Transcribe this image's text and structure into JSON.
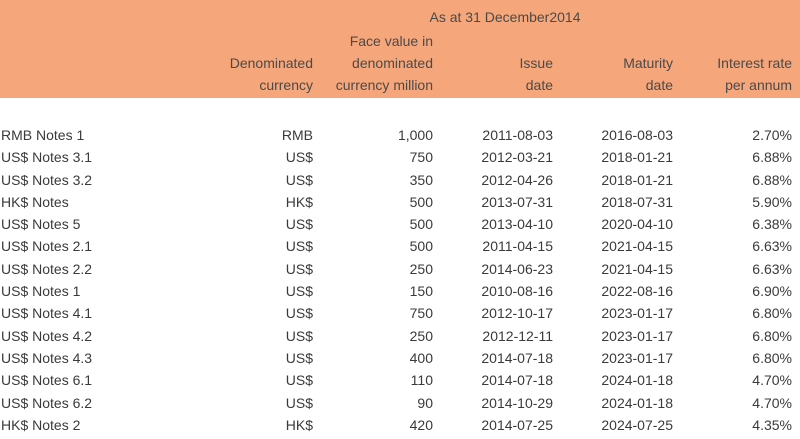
{
  "header": {
    "period": "As at 31 December2014",
    "columns": {
      "currency": [
        "Denominated",
        "currency"
      ],
      "face_value": [
        "Face value in",
        "denominated",
        "currency million"
      ],
      "issue": [
        "Issue",
        "date"
      ],
      "maturity": [
        "Maturity",
        "date"
      ],
      "rate": [
        "Interest rate",
        "per annum"
      ]
    }
  },
  "colors": {
    "header_bg": "#f5a77b",
    "text": "#3a3a3a"
  },
  "rows": [
    {
      "name": "RMB Notes 1",
      "currency": "RMB",
      "face": "1,000",
      "issue": "2011-08-03",
      "maturity": "2016-08-03",
      "rate": "2.70%"
    },
    {
      "name": "US$ Notes 3.1",
      "currency": "US$",
      "face": "750",
      "issue": "2012-03-21",
      "maturity": "2018-01-21",
      "rate": "6.88%"
    },
    {
      "name": "US$ Notes 3.2",
      "currency": "US$",
      "face": "350",
      "issue": "2012-04-26",
      "maturity": "2018-01-21",
      "rate": "6.88%"
    },
    {
      "name": "HK$ Notes",
      "currency": "HK$",
      "face": "500",
      "issue": "2013-07-31",
      "maturity": "2018-07-31",
      "rate": "5.90%"
    },
    {
      "name": "US$ Notes 5",
      "currency": "US$",
      "face": "500",
      "issue": "2013-04-10",
      "maturity": "2020-04-10",
      "rate": "6.38%"
    },
    {
      "name": "US$ Notes 2.1",
      "currency": "US$",
      "face": "500",
      "issue": "2011-04-15",
      "maturity": "2021-04-15",
      "rate": "6.63%"
    },
    {
      "name": "US$ Notes 2.2",
      "currency": "US$",
      "face": "250",
      "issue": "2014-06-23",
      "maturity": "2021-04-15",
      "rate": "6.63%"
    },
    {
      "name": "US$ Notes 1",
      "currency": "US$",
      "face": "150",
      "issue": "2010-08-16",
      "maturity": "2022-08-16",
      "rate": "6.90%"
    },
    {
      "name": "US$ Notes 4.1",
      "currency": "US$",
      "face": "750",
      "issue": "2012-10-17",
      "maturity": "2023-01-17",
      "rate": "6.80%"
    },
    {
      "name": "US$ Notes 4.2",
      "currency": "US$",
      "face": "250",
      "issue": "2012-12-11",
      "maturity": "2023-01-17",
      "rate": "6.80%"
    },
    {
      "name": "US$ Notes 4.3",
      "currency": "US$",
      "face": "400",
      "issue": "2014-07-18",
      "maturity": "2023-01-17",
      "rate": "6.80%"
    },
    {
      "name": "US$ Notes 6.1",
      "currency": "US$",
      "face": "110",
      "issue": "2014-07-18",
      "maturity": "2024-01-18",
      "rate": "4.70%"
    },
    {
      "name": "US$ Notes 6.2",
      "currency": "US$",
      "face": "90",
      "issue": "2014-10-29",
      "maturity": "2024-01-18",
      "rate": "4.70%"
    },
    {
      "name": "HK$ Notes 2",
      "currency": "HK$",
      "face": "420",
      "issue": "2014-07-25",
      "maturity": "2024-07-25",
      "rate": "4.35%"
    }
  ]
}
